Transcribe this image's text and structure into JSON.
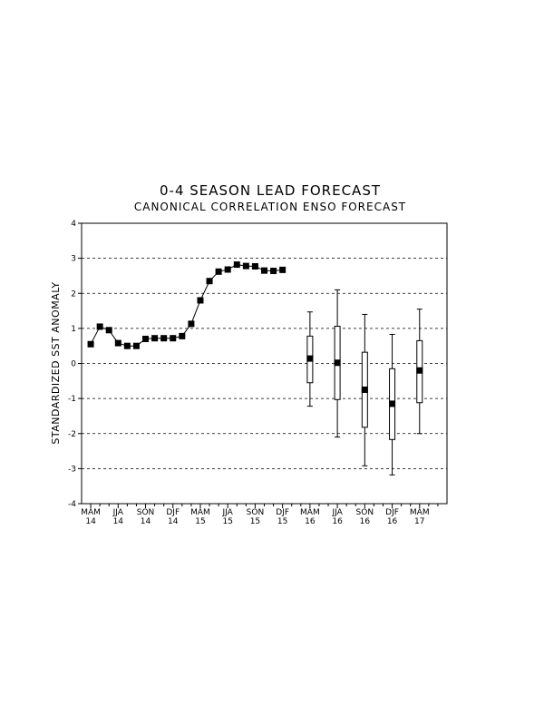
{
  "chart_data": {
    "type": "line",
    "title": "0-4 SEASON LEAD FORECAST",
    "subtitle": "CANONICAL CORRELATION ENSO FORECAST",
    "ylabel": "STANDARDIZED SST ANOMALY",
    "ylim": [
      -4,
      4
    ],
    "yticks": [
      "4",
      "3",
      "2",
      "1",
      "0",
      "-1",
      "-2",
      "-3",
      "-4"
    ],
    "grid": "horizontal-dashed",
    "xticks": [
      {
        "index": 0,
        "season": "MAM",
        "year": "14"
      },
      {
        "index": 3,
        "season": "JJA",
        "year": "14"
      },
      {
        "index": 6,
        "season": "SON",
        "year": "14"
      },
      {
        "index": 9,
        "season": "DJF",
        "year": "14"
      },
      {
        "index": 12,
        "season": "MAM",
        "year": "15"
      },
      {
        "index": 15,
        "season": "JJA",
        "year": "15"
      },
      {
        "index": 18,
        "season": "SON",
        "year": "15"
      },
      {
        "index": 21,
        "season": "DJF",
        "year": "15"
      },
      {
        "index": 24,
        "season": "MAM",
        "year": "16"
      },
      {
        "index": 27,
        "season": "JJA",
        "year": "16"
      },
      {
        "index": 30,
        "season": "SON",
        "year": "16"
      },
      {
        "index": 33,
        "season": "DJF",
        "year": "16"
      },
      {
        "index": 36,
        "season": "MAM",
        "year": "17"
      }
    ],
    "observed": {
      "x": [
        0,
        1,
        2,
        3,
        4,
        5,
        6,
        7,
        8,
        9,
        10,
        11,
        12,
        13,
        14,
        15,
        16,
        17,
        18,
        19,
        20,
        21
      ],
      "values": [
        0.55,
        1.05,
        0.95,
        0.58,
        0.5,
        0.5,
        0.7,
        0.72,
        0.72,
        0.72,
        0.78,
        1.13,
        1.8,
        2.35,
        2.62,
        2.68,
        2.82,
        2.78,
        2.77,
        2.65,
        2.64,
        2.67
      ]
    },
    "forecast": [
      {
        "x": 24,
        "mean": 0.14,
        "box_low": -0.55,
        "box_high": 0.78,
        "whisker_low": -1.22,
        "whisker_high": 1.47
      },
      {
        "x": 27,
        "mean": 0.02,
        "box_low": -1.03,
        "box_high": 1.06,
        "whisker_low": -2.1,
        "whisker_high": 2.1
      },
      {
        "x": 30,
        "mean": -0.75,
        "box_low": -1.82,
        "box_high": 0.32,
        "whisker_low": -2.92,
        "whisker_high": 1.4
      },
      {
        "x": 33,
        "mean": -1.15,
        "box_low": -2.17,
        "box_high": -0.15,
        "whisker_low": -3.18,
        "whisker_high": 0.83
      },
      {
        "x": 36,
        "mean": -0.2,
        "box_low": -1.12,
        "box_high": 0.65,
        "whisker_low": -2.0,
        "whisker_high": 1.55
      }
    ],
    "xlim": [
      -1,
      39
    ]
  }
}
